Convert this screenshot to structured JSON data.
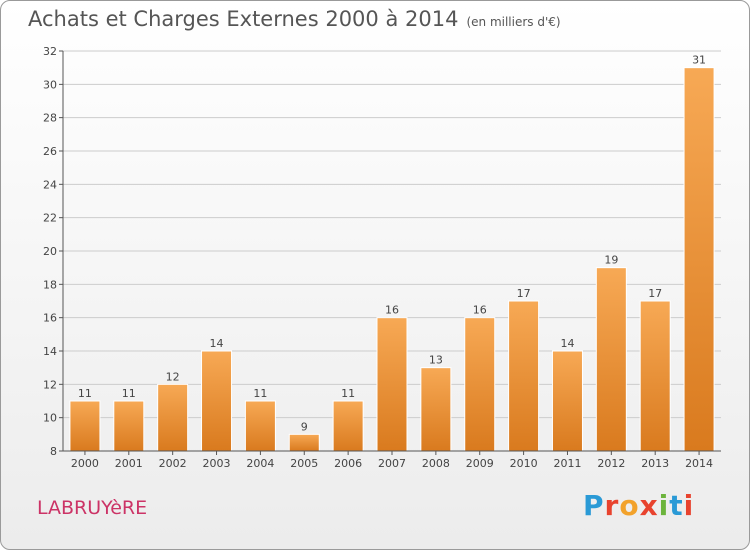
{
  "header": {
    "title": "Achats et Charges Externes 2000 à 2014",
    "subtitle": "(en milliers d'€)"
  },
  "footer": {
    "commune": "LABRUYèRE",
    "brand_letters": [
      "P",
      "r",
      "o",
      "x",
      "i",
      "t",
      "i"
    ],
    "brand_colors": [
      "#2a9ad6",
      "#e8432e",
      "#f2a22b",
      "#e8432e",
      "#6cb43c",
      "#2a9ad6",
      "#e8432e"
    ]
  },
  "colors": {
    "bar_top": "#f7a955",
    "bar_bottom": "#d97a1e",
    "bar_stroke": "#ffffff",
    "grid": "#cccccc",
    "axis": "#555555"
  },
  "chart_data": {
    "type": "bar",
    "title": "Achats et Charges Externes 2000 à 2014",
    "subtitle": "(en milliers d'€)",
    "categories": [
      "2000",
      "2001",
      "2002",
      "2003",
      "2004",
      "2005",
      "2006",
      "2007",
      "2008",
      "2009",
      "2010",
      "2011",
      "2012",
      "2013",
      "2014"
    ],
    "values": [
      11,
      11,
      12,
      14,
      11,
      9,
      11,
      16,
      13,
      16,
      17,
      14,
      19,
      17,
      31
    ],
    "ylim": [
      8,
      32
    ],
    "yticks": [
      8,
      10,
      12,
      14,
      16,
      18,
      20,
      22,
      24,
      26,
      28,
      30,
      32
    ],
    "grid": true
  }
}
